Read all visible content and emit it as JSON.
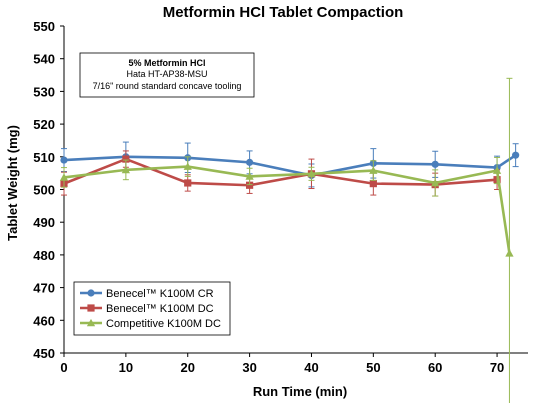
{
  "chart_data": {
    "type": "line",
    "title": "Metformin HCl Tablet Compaction",
    "xlabel": "Run Time (min)",
    "ylabel": "Tablet Weight (mg)",
    "xlim": [
      0,
      75
    ],
    "ylim": [
      450,
      550
    ],
    "xticks": [
      0,
      10,
      20,
      30,
      40,
      50,
      60,
      70
    ],
    "yticks": [
      450,
      460,
      470,
      480,
      490,
      500,
      510,
      520,
      530,
      540,
      550
    ],
    "grid": false,
    "legend_position": "bottom-left",
    "annotation": [
      "5% Metformin HCl",
      "Hata HT-AP38-MSU",
      "7/16\" round standard concave tooling"
    ],
    "series": [
      {
        "name": "Benecel™ K100M CR",
        "color": "#4a7ebb",
        "marker": "circle",
        "x": [
          0,
          10,
          20,
          30,
          40,
          50,
          60,
          70,
          73
        ],
        "y": [
          509,
          510,
          509.7,
          508.3,
          504.3,
          508,
          507.7,
          506.7,
          510.5
        ],
        "err": [
          3.5,
          4.5,
          4.5,
          3.5,
          3.5,
          4.5,
          4,
          3.5,
          3.5
        ]
      },
      {
        "name": "Benecel™ K100M DC",
        "color": "#be4b48",
        "marker": "square",
        "x": [
          0,
          10,
          20,
          30,
          40,
          50,
          60,
          70
        ],
        "y": [
          501.8,
          509.3,
          502,
          501.3,
          504.8,
          501.8,
          501.5,
          503
        ],
        "err": [
          3.5,
          2.5,
          2.5,
          2.5,
          4.5,
          3.5,
          3.5,
          3
        ]
      },
      {
        "name": "Competitive K100M DC",
        "color": "#98b954",
        "marker": "triangle",
        "x": [
          0,
          10,
          20,
          30,
          40,
          50,
          60,
          70,
          72
        ],
        "y": [
          503.7,
          506,
          507,
          504,
          504.8,
          505.8,
          502,
          505.8,
          480.5
        ],
        "err": [
          3,
          3,
          3,
          2.5,
          2,
          3,
          4,
          4,
          53.5
        ]
      }
    ]
  }
}
